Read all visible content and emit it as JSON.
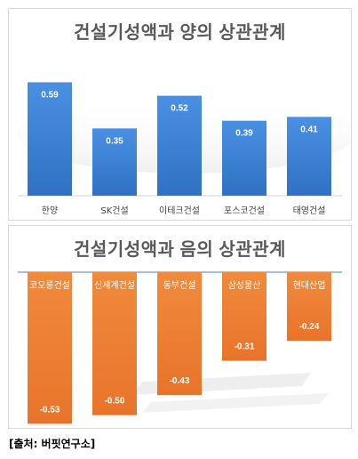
{
  "source_label": "[출처: 버핏연구소]",
  "chart_data": [
    {
      "type": "bar",
      "title": "건설기성액과 양의 상관관계",
      "categories": [
        "한양",
        "SK건설",
        "이테크건설",
        "포스코건설",
        "태영건설"
      ],
      "values": [
        0.59,
        0.35,
        0.52,
        0.39,
        0.41
      ],
      "value_labels": [
        "0.59",
        "0.35",
        "0.52",
        "0.39",
        "0.41"
      ],
      "ylim": [
        0,
        0.62
      ],
      "color": "#3a80d2",
      "grid": false,
      "legend": "none"
    },
    {
      "type": "bar",
      "title": "건설기성액과 음의 상관관계",
      "categories": [
        "코오롱건설",
        "신세계건설",
        "동부건설",
        "삼성물산",
        "현대산업"
      ],
      "values": [
        -0.53,
        -0.5,
        -0.43,
        -0.31,
        -0.24
      ],
      "value_labels": [
        "-0.53",
        "-0.50",
        "-0.43",
        "-0.31",
        "-0.24"
      ],
      "ylim": [
        -0.56,
        0
      ],
      "color": "#ed7d31",
      "grid": false,
      "legend": "none"
    }
  ]
}
